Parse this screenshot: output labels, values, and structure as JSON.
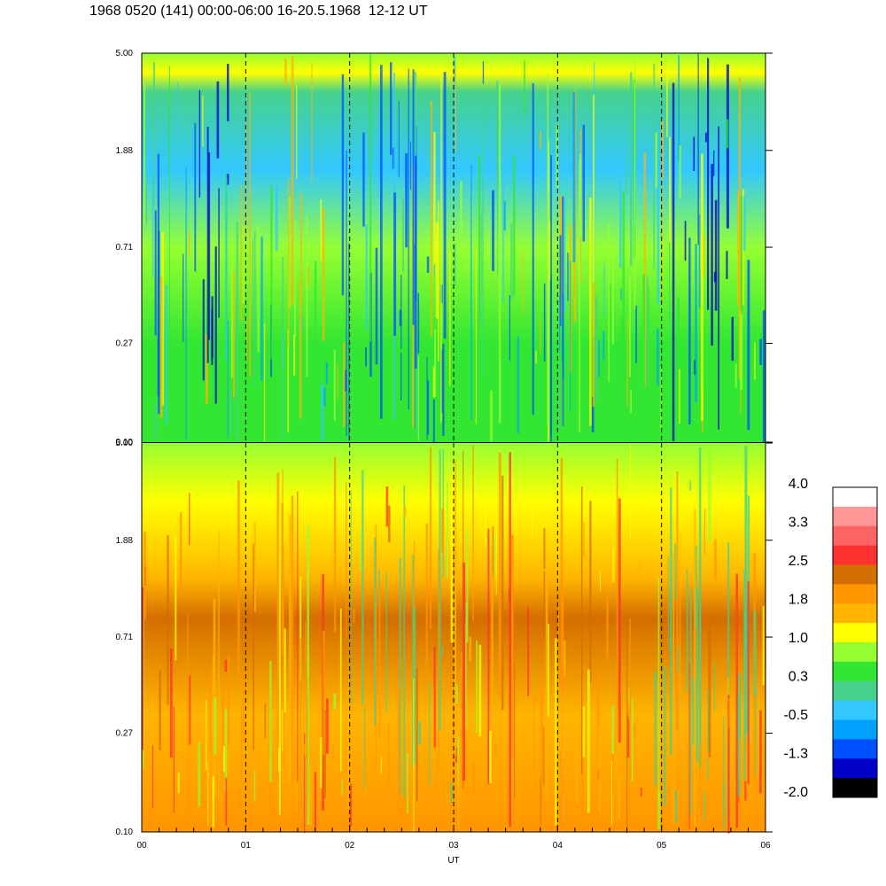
{
  "header": {
    "title": "1968 0520 (141) 00:00-06:00 16-20.5.1968  12-12 UT"
  },
  "chart_data": [
    {
      "type": "heatmap",
      "panel": "top",
      "x_range": [
        0,
        6
      ],
      "y_scale": "log",
      "y_range": [
        0.1,
        5.0
      ],
      "y_tick_labels": [
        "5.00",
        "1.88",
        "0.71",
        "0.27",
        "0.10"
      ],
      "vertical_dashed_lines_at": [
        1,
        2,
        3,
        4,
        5
      ]
    },
    {
      "type": "heatmap",
      "panel": "bottom",
      "x_range": [
        0,
        6
      ],
      "x_tick_labels": [
        "00",
        "01",
        "02",
        "03",
        "04",
        "05",
        "06"
      ],
      "xlabel": "UT",
      "y_scale": "log",
      "y_range": [
        0.1,
        5.0
      ],
      "y_tick_labels": [
        "5.00",
        "1.88",
        "0.71",
        "0.27",
        "0.10"
      ],
      "vertical_dashed_lines_at": [
        1,
        2,
        3,
        4,
        5
      ]
    }
  ],
  "colorbar": {
    "labels": [
      "4.0",
      "3.3",
      "2.5",
      "1.8",
      "1.0",
      "0.3",
      "-0.5",
      "-1.3",
      "-2.0"
    ],
    "colors_top_to_bottom": [
      "#ffffff",
      "#ff9696",
      "#ff6464",
      "#ff3232",
      "#d46e00",
      "#ff9600",
      "#ffb400",
      "#ffff00",
      "#96ff32",
      "#32e632",
      "#46d28c",
      "#32c8ff",
      "#00a0ff",
      "#0050ff",
      "#0000c8",
      "#000000"
    ]
  }
}
